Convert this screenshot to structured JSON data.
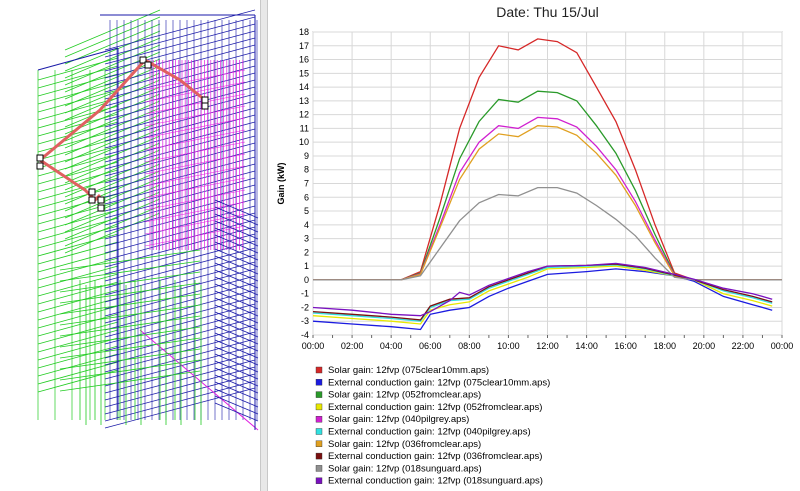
{
  "colors": {
    "solar_075": "#d62828",
    "ext_075": "#1b1be0",
    "solar_052": "#2a9a2a",
    "ext_052": "#e8e800",
    "solar_040": "#d020d0",
    "ext_040": "#30e0e0",
    "solar_036": "#e0a020",
    "ext_036": "#7a1010",
    "solar_018": "#909090",
    "ext_018": "#7a10c0"
  },
  "chart_data": {
    "type": "line",
    "title": "Date: Thu 15/Jul",
    "ylabel": "Gain (kW)",
    "xlabel": "",
    "ylim": [
      -4,
      18
    ],
    "yticks": [
      -4,
      -3,
      -2,
      -1,
      0,
      1,
      2,
      3,
      4,
      5,
      6,
      7,
      8,
      9,
      10,
      11,
      12,
      13,
      14,
      15,
      16,
      17,
      18
    ],
    "x_hours": [
      0,
      1,
      2,
      3,
      4,
      5,
      6,
      7,
      8,
      9,
      10,
      11,
      12,
      13,
      14,
      15,
      16,
      17,
      18,
      19,
      20,
      21,
      22,
      23,
      24
    ],
    "xticks": [
      "00:00",
      "02:00",
      "04:00",
      "06:00",
      "08:00",
      "10:00",
      "12:00",
      "14:00",
      "16:00",
      "18:00",
      "20:00",
      "22:00",
      "00:00"
    ],
    "grid": true,
    "legend_position": "bottom",
    "series": [
      {
        "name": "Solar gain: 12fvp (075clear10mm.aps)",
        "color_key": "solar_075",
        "points": [
          [
            0,
            0
          ],
          [
            4.5,
            0
          ],
          [
            5.5,
            0.6
          ],
          [
            6.5,
            5.5
          ],
          [
            7.5,
            11
          ],
          [
            8.5,
            14.7
          ],
          [
            9.5,
            17
          ],
          [
            10.5,
            16.7
          ],
          [
            11.5,
            17.5
          ],
          [
            12.5,
            17.3
          ],
          [
            13.5,
            16.5
          ],
          [
            14.5,
            14
          ],
          [
            15.5,
            11.5
          ],
          [
            16.5,
            8
          ],
          [
            17.5,
            4
          ],
          [
            18.5,
            0.5
          ],
          [
            19.5,
            0
          ],
          [
            24,
            0
          ]
        ]
      },
      {
        "name": "External conduction gain: 12fvp (075clear10mm.aps)",
        "color_key": "ext_075",
        "points": [
          [
            0,
            -3
          ],
          [
            2,
            -3.2
          ],
          [
            4,
            -3.4
          ],
          [
            5.5,
            -3.6
          ],
          [
            6,
            -2.5
          ],
          [
            7,
            -2.2
          ],
          [
            8,
            -2
          ],
          [
            9,
            -1.2
          ],
          [
            10,
            -0.6
          ],
          [
            11,
            -0.1
          ],
          [
            12,
            0.4
          ],
          [
            14,
            0.6
          ],
          [
            15.5,
            0.8
          ],
          [
            17,
            0.6
          ],
          [
            18.5,
            0.3
          ],
          [
            19.5,
            -0.1
          ],
          [
            21,
            -1.2
          ],
          [
            22.5,
            -1.8
          ],
          [
            23.5,
            -2.2
          ]
        ]
      },
      {
        "name": "Solar gain: 12fvp (052fromclear.aps)",
        "color_key": "solar_052",
        "points": [
          [
            0,
            0
          ],
          [
            4.5,
            0
          ],
          [
            5.5,
            0.5
          ],
          [
            6.5,
            4.5
          ],
          [
            7.5,
            8.8
          ],
          [
            8.5,
            11.5
          ],
          [
            9.5,
            13.1
          ],
          [
            10.5,
            12.9
          ],
          [
            11.5,
            13.7
          ],
          [
            12.5,
            13.6
          ],
          [
            13.5,
            13
          ],
          [
            14.5,
            11.2
          ],
          [
            15.5,
            9.2
          ],
          [
            16.5,
            6.5
          ],
          [
            17.5,
            3.3
          ],
          [
            18.5,
            0.4
          ],
          [
            19.5,
            0
          ],
          [
            24,
            0
          ]
        ]
      },
      {
        "name": "External conduction gain: 12fvp (052fromclear.aps)",
        "color_key": "ext_052",
        "points": [
          [
            0,
            -2.6
          ],
          [
            2,
            -2.8
          ],
          [
            4,
            -3
          ],
          [
            5.5,
            -3.2
          ],
          [
            6,
            -2.2
          ],
          [
            7,
            -1.8
          ],
          [
            8,
            -1.6
          ],
          [
            9,
            -0.8
          ],
          [
            10,
            -0.3
          ],
          [
            11,
            0.2
          ],
          [
            12,
            0.8
          ],
          [
            14,
            0.9
          ],
          [
            15.5,
            1
          ],
          [
            17,
            0.7
          ],
          [
            18.5,
            0.3
          ],
          [
            19.5,
            0
          ],
          [
            21,
            -1
          ],
          [
            22.5,
            -1.5
          ],
          [
            23.5,
            -1.9
          ]
        ]
      },
      {
        "name": "Solar gain: 12fvp (040pilgrey.aps)",
        "color_key": "solar_040",
        "points": [
          [
            0,
            0
          ],
          [
            4.5,
            0
          ],
          [
            5.5,
            0.45
          ],
          [
            6.5,
            4
          ],
          [
            7.5,
            7.8
          ],
          [
            8.5,
            10
          ],
          [
            9.5,
            11.2
          ],
          [
            10.5,
            11
          ],
          [
            11.5,
            11.8
          ],
          [
            12.5,
            11.7
          ],
          [
            13.5,
            11.1
          ],
          [
            14.5,
            9.7
          ],
          [
            15.5,
            8
          ],
          [
            16.5,
            5.7
          ],
          [
            17.5,
            2.9
          ],
          [
            18.5,
            0.35
          ],
          [
            19.5,
            0
          ],
          [
            24,
            0
          ]
        ]
      },
      {
        "name": "External conduction gain: 12fvp (040pilgrey.aps)",
        "color_key": "ext_040",
        "points": [
          [
            0,
            -2.4
          ],
          [
            2,
            -2.6
          ],
          [
            4,
            -2.8
          ],
          [
            5.5,
            -3
          ],
          [
            6,
            -2
          ],
          [
            7,
            -1.5
          ],
          [
            8,
            -1.4
          ],
          [
            9,
            -0.6
          ],
          [
            10,
            -0.1
          ],
          [
            11,
            0.4
          ],
          [
            12,
            0.9
          ],
          [
            14,
            1
          ],
          [
            15.5,
            1.1
          ],
          [
            17,
            0.8
          ],
          [
            18.5,
            0.3
          ],
          [
            19.5,
            0
          ],
          [
            21,
            -0.8
          ],
          [
            22.5,
            -1.3
          ],
          [
            23.5,
            -1.7
          ]
        ]
      },
      {
        "name": "Solar gain: 12fvp (036fromclear.aps)",
        "color_key": "solar_036",
        "points": [
          [
            0,
            0
          ],
          [
            4.5,
            0
          ],
          [
            5.5,
            0.4
          ],
          [
            6.5,
            3.8
          ],
          [
            7.5,
            7.3
          ],
          [
            8.5,
            9.5
          ],
          [
            9.5,
            10.6
          ],
          [
            10.5,
            10.4
          ],
          [
            11.5,
            11.2
          ],
          [
            12.5,
            11.1
          ],
          [
            13.5,
            10.5
          ],
          [
            14.5,
            9.2
          ],
          [
            15.5,
            7.6
          ],
          [
            16.5,
            5.4
          ],
          [
            17.5,
            2.7
          ],
          [
            18.5,
            0.3
          ],
          [
            19.5,
            0
          ],
          [
            24,
            0
          ]
        ]
      },
      {
        "name": "External conduction gain: 12fvp (036fromclear.aps)",
        "color_key": "ext_036",
        "points": [
          [
            0,
            -2.3
          ],
          [
            2,
            -2.5
          ],
          [
            4,
            -2.7
          ],
          [
            5.5,
            -2.9
          ],
          [
            6,
            -1.9
          ],
          [
            7,
            -1.4
          ],
          [
            8,
            -1.3
          ],
          [
            9,
            -0.5
          ],
          [
            10,
            0
          ],
          [
            11,
            0.5
          ],
          [
            12,
            1
          ],
          [
            14,
            1.05
          ],
          [
            15.5,
            1.15
          ],
          [
            17,
            0.85
          ],
          [
            18.5,
            0.35
          ],
          [
            19.5,
            0
          ],
          [
            21,
            -0.7
          ],
          [
            22.5,
            -1.2
          ],
          [
            23.5,
            -1.6
          ]
        ]
      },
      {
        "name": "Solar gain: 12fvp (018sunguard.aps)",
        "color_key": "solar_018",
        "points": [
          [
            0,
            0
          ],
          [
            4.5,
            0
          ],
          [
            5.5,
            0.3
          ],
          [
            6.5,
            2.3
          ],
          [
            7.5,
            4.3
          ],
          [
            8.5,
            5.6
          ],
          [
            9.5,
            6.2
          ],
          [
            10.5,
            6.1
          ],
          [
            11.5,
            6.7
          ],
          [
            12.5,
            6.7
          ],
          [
            13.5,
            6.3
          ],
          [
            14.5,
            5.4
          ],
          [
            15.5,
            4.4
          ],
          [
            16.5,
            3.2
          ],
          [
            17.5,
            1.6
          ],
          [
            18.5,
            0.2
          ],
          [
            19.5,
            0
          ],
          [
            24,
            0
          ]
        ]
      },
      {
        "name": "External conduction gain: 12fvp (018sunguard.aps)",
        "color_key": "ext_018",
        "points": [
          [
            0,
            -2
          ],
          [
            2,
            -2.2
          ],
          [
            4,
            -2.5
          ],
          [
            5.5,
            -2.6
          ],
          [
            6,
            -2.3
          ],
          [
            7,
            -1.5
          ],
          [
            7.5,
            -0.9
          ],
          [
            8,
            -1.1
          ],
          [
            9,
            -0.4
          ],
          [
            10,
            0.1
          ],
          [
            11,
            0.6
          ],
          [
            12,
            1
          ],
          [
            14,
            1.05
          ],
          [
            15.5,
            1.2
          ],
          [
            17,
            0.9
          ],
          [
            18.5,
            0.4
          ],
          [
            19.5,
            0.05
          ],
          [
            21,
            -0.6
          ],
          [
            22.5,
            -1.0
          ],
          [
            23.5,
            -1.4
          ]
        ]
      }
    ]
  }
}
